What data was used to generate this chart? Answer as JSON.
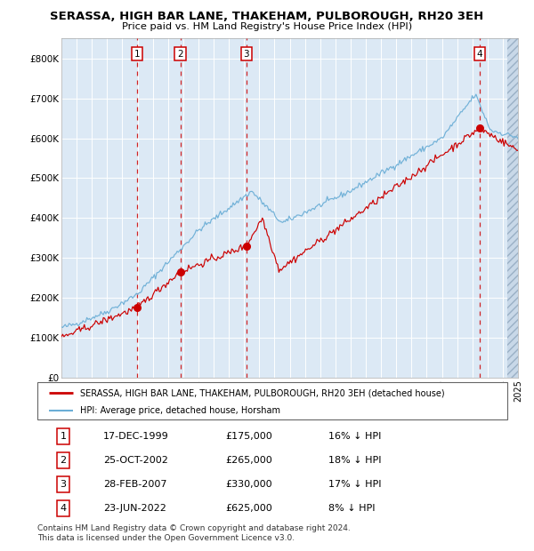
{
  "title": "SERASSA, HIGH BAR LANE, THAKEHAM, PULBOROUGH, RH20 3EH",
  "subtitle": "Price paid vs. HM Land Registry's House Price Index (HPI)",
  "background_color": "#dce9f5",
  "grid_color": "#ffffff",
  "ylim": [
    0,
    850000
  ],
  "yticks": [
    0,
    100000,
    200000,
    300000,
    400000,
    500000,
    600000,
    700000,
    800000
  ],
  "ytick_labels": [
    "£0",
    "£100K",
    "£200K",
    "£300K",
    "£400K",
    "£500K",
    "£600K",
    "£700K",
    "£800K"
  ],
  "x_start_year": 1995,
  "x_end_year": 2025,
  "hpi_color": "#6baed6",
  "price_color": "#cc0000",
  "marker_color": "#cc0000",
  "sales": [
    {
      "num": 1,
      "year": 1999.96,
      "price": 175000,
      "label": "1"
    },
    {
      "num": 2,
      "year": 2002.81,
      "price": 265000,
      "label": "2"
    },
    {
      "num": 3,
      "year": 2007.16,
      "price": 330000,
      "label": "3"
    },
    {
      "num": 4,
      "year": 2022.47,
      "price": 625000,
      "label": "4"
    }
  ],
  "legend_line1": "SERASSA, HIGH BAR LANE, THAKEHAM, PULBOROUGH, RH20 3EH (detached house)",
  "legend_line2": "HPI: Average price, detached house, Horsham",
  "table_rows": [
    {
      "num": "1",
      "date": "17-DEC-1999",
      "price": "£175,000",
      "hpi": "16% ↓ HPI"
    },
    {
      "num": "2",
      "date": "25-OCT-2002",
      "price": "£265,000",
      "hpi": "18% ↓ HPI"
    },
    {
      "num": "3",
      "date": "28-FEB-2007",
      "price": "£330,000",
      "hpi": "17% ↓ HPI"
    },
    {
      "num": "4",
      "date": "23-JUN-2022",
      "price": "£625,000",
      "hpi": "8% ↓ HPI"
    }
  ],
  "footer_line1": "Contains HM Land Registry data © Crown copyright and database right 2024.",
  "footer_line2": "This data is licensed under the Open Government Licence v3.0."
}
